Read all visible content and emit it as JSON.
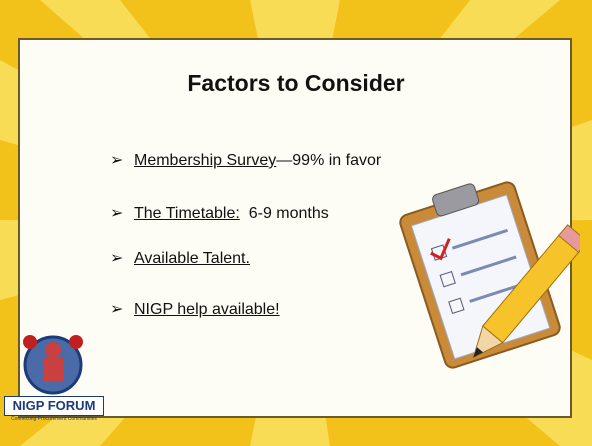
{
  "title": "Factors to Consider",
  "bullets": [
    {
      "link": "Membership Survey",
      "rest": "—99% in favor"
    },
    {
      "link": "The Timetable:",
      "rest": "  6-9 months"
    },
    {
      "link": "Available Talent."
    },
    {
      "link": "NIGP help available!"
    }
  ],
  "logo": {
    "name": "NIGP FORUM",
    "tagline": "Connecting Procurement Communities"
  }
}
